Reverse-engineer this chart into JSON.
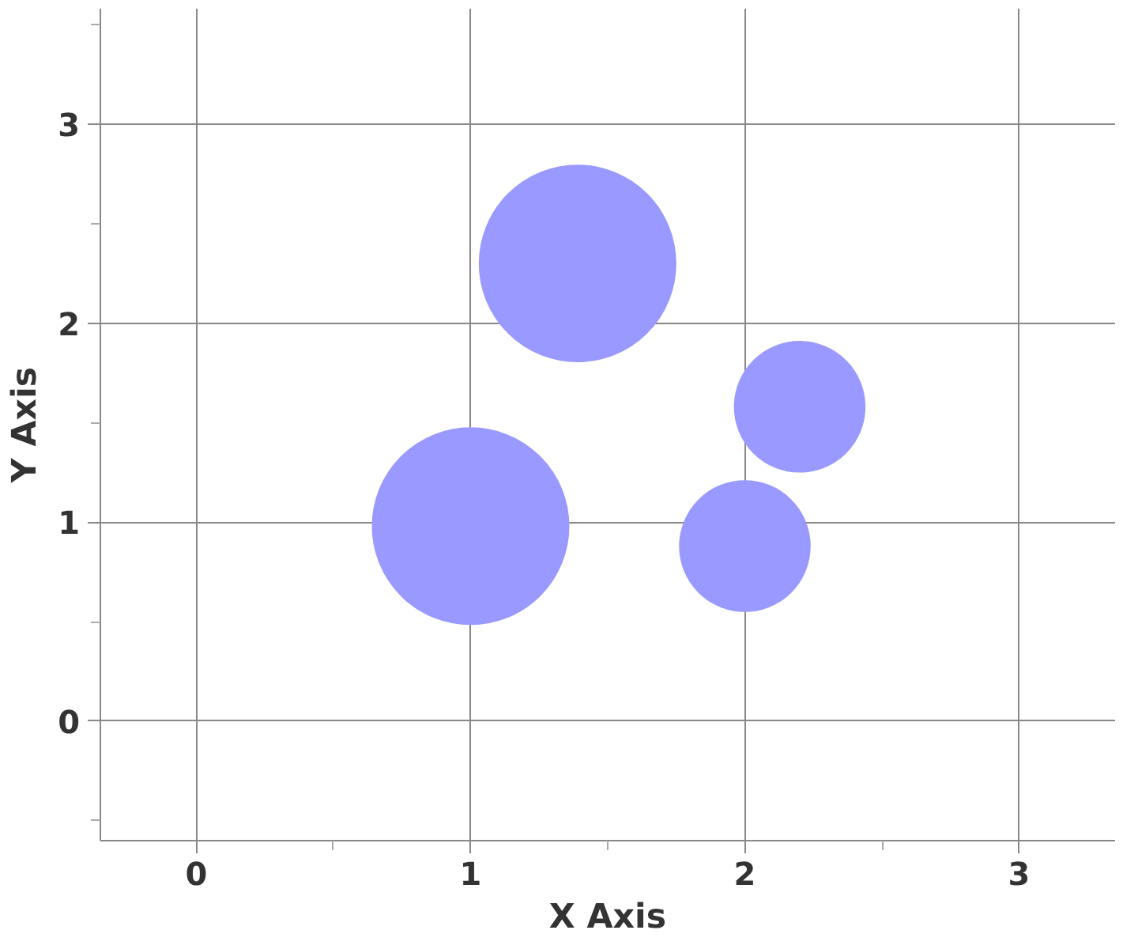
{
  "chart_data": {
    "type": "bubble",
    "xlabel": "X Axis",
    "ylabel": "Y Axis",
    "x": [
      1.0,
      1.39,
      2.2,
      2.0
    ],
    "values": [
      0.98,
      2.3,
      1.58,
      0.88
    ],
    "sizes": [
      1,
      1,
      0.44,
      0.44
    ],
    "color": "#9999ff",
    "xlim": [
      -0.35,
      3.35
    ],
    "ylim": [
      -0.6,
      3.58
    ],
    "xticks": [
      0,
      {
        "value": 0.5,
        "label": null
      },
      1,
      {
        "value": 1.5,
        "label": null
      },
      2,
      {
        "value": 2.5,
        "label": null
      },
      3
    ],
    "yticks": [
      {
        "value": -0.5,
        "label": null
      },
      0,
      {
        "value": 0.5,
        "label": null
      },
      1,
      {
        "value": 1.5,
        "label": null
      },
      2,
      {
        "value": 2.5,
        "label": null
      },
      3,
      {
        "value": 3.5,
        "label": null
      }
    ],
    "grid": true
  }
}
